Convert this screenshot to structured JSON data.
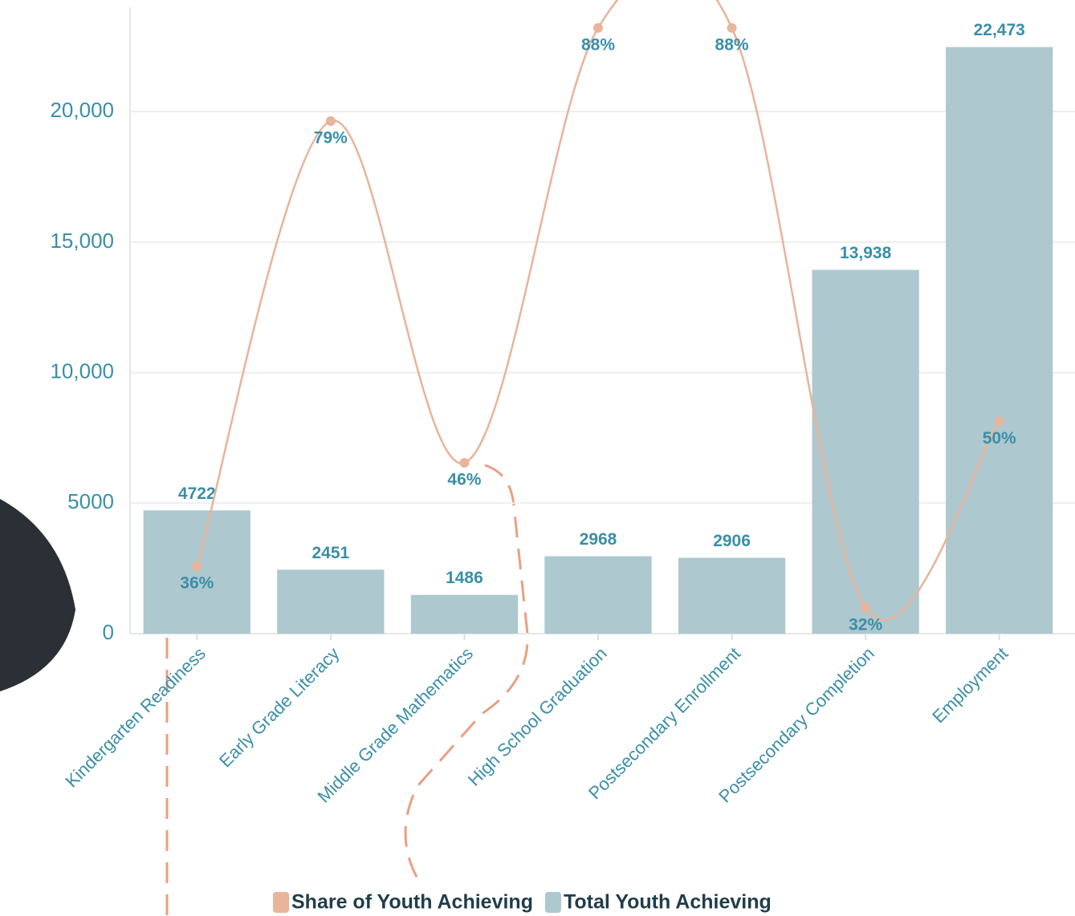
{
  "chart_data": {
    "type": "bar",
    "categories": [
      "Kindergarten Readiness",
      "Early Grade Literacy",
      "Middle Grade Mathematics",
      "High School Graduation",
      "Postsecondary Enrollment",
      "Postsecondary Completion",
      "Employment"
    ],
    "series": [
      {
        "name": "Share of Youth Achieving",
        "type": "line",
        "axis": "y2",
        "color": "#e8b49a",
        "values": [
          36,
          79,
          46,
          88,
          88,
          32,
          50
        ],
        "value_labels": [
          "36%",
          "79%",
          "46%",
          "88%",
          "88%",
          "32%",
          "50%"
        ]
      },
      {
        "name": "Total Youth Achieving",
        "color": "#aec8cf",
        "values": [
          4722,
          2451,
          1486,
          2968,
          2906,
          13938,
          22473
        ],
        "value_labels": [
          "4722",
          "2451",
          "1486",
          "2968",
          "2906",
          "13,938",
          "22,473"
        ]
      }
    ],
    "ylim": [
      0,
      24000
    ],
    "yticks": [
      0,
      5000,
      {
        "value": 10000,
        "label": "10,000"
      },
      {
        "value": 15000,
        "label": "15,000"
      },
      {
        "value": 20000,
        "label": "20,000"
      }
    ],
    "y2lim": [
      29.5,
      90
    ],
    "grid": true,
    "legend": "bottom"
  }
}
